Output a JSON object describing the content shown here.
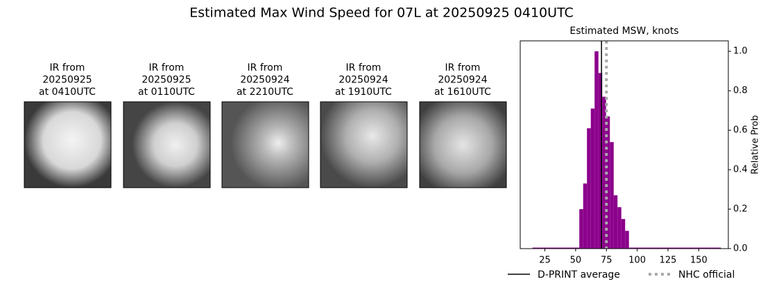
{
  "title": "Estimated Max Wind Speed for 07L at 20250925 0410UTC",
  "panels": [
    {
      "lines": [
        "IR from",
        "20250925",
        "at 0410UTC"
      ]
    },
    {
      "lines": [
        "IR from",
        "20250925",
        "at 0110UTC"
      ]
    },
    {
      "lines": [
        "IR from",
        "20250924",
        "at 2210UTC"
      ]
    },
    {
      "lines": [
        "IR from",
        "20250924",
        "at 1910UTC"
      ]
    },
    {
      "lines": [
        "IR from",
        "20250924",
        "at 1610UTC"
      ]
    }
  ],
  "chart_data": {
    "type": "histogram",
    "title": "Estimated MSW, knots",
    "y_label": "Relative Prob",
    "bins": [
      15,
      53,
      56.1,
      59.2,
      62.3,
      65.4,
      68.5,
      71.6,
      74.7,
      77.8,
      80.9,
      84,
      87.1,
      90.2,
      93.3,
      168
    ],
    "values": [
      0.005,
      0.2,
      0.33,
      0.61,
      0.71,
      1.0,
      0.89,
      0.77,
      0.67,
      0.54,
      0.27,
      0.21,
      0.15,
      0.09,
      0.005
    ],
    "color": "#8b008b",
    "xlim": [
      5,
      174
    ],
    "xticks": [
      25,
      50,
      75,
      100,
      125,
      150
    ],
    "ylim": [
      0,
      1.053
    ],
    "yticks": [
      {
        "value": 0,
        "label": "0.0"
      },
      {
        "value": 0.2,
        "label": "0.2"
      },
      {
        "value": 0.4,
        "label": "0.4"
      },
      {
        "value": 0.6,
        "label": "0.6"
      },
      {
        "value": 0.8,
        "label": "0.8"
      },
      {
        "value": 1,
        "label": "1.0"
      }
    ],
    "y_axis_side": "right",
    "reference_lines": [
      {
        "name": "D-PRINT average",
        "value": 71,
        "color": "#000000",
        "style": "solid"
      },
      {
        "name": "NHC official",
        "value": 75,
        "color": "#a9a9a9",
        "style": "dotted"
      }
    ]
  }
}
